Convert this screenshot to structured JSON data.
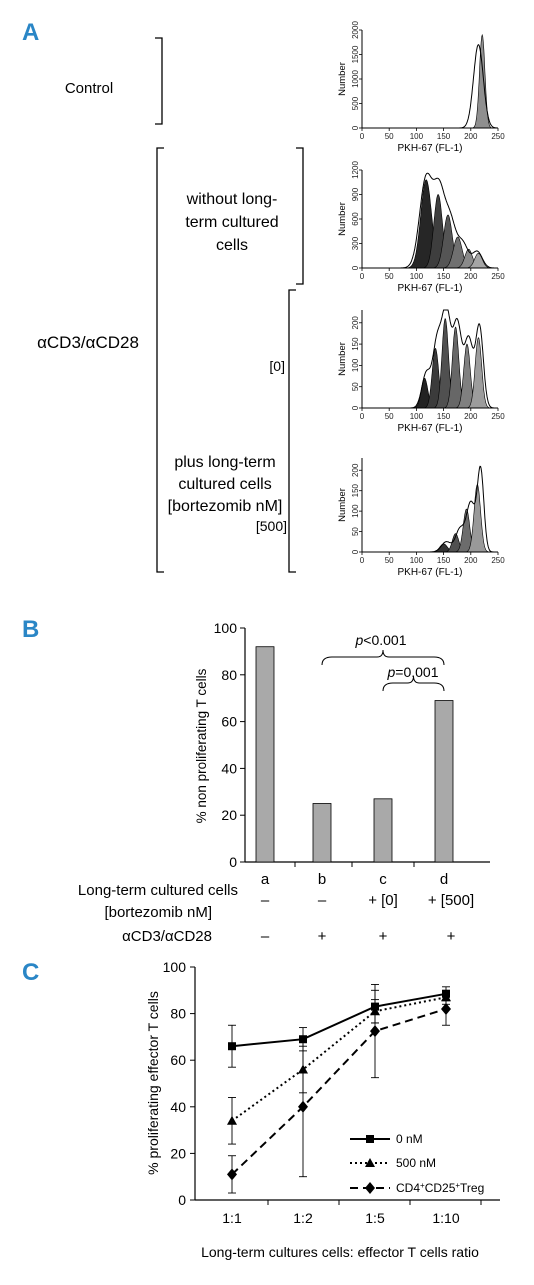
{
  "panels": {
    "A": {
      "letter": "A",
      "group_labels": {
        "control": "Control",
        "stim": "αCD3/αCD28",
        "without": [
          "without long-",
          "term cultured",
          "cells"
        ],
        "plus": [
          "plus long-term",
          "cultured cells",
          "[bortezomib nM]"
        ],
        "dose0": "[0]",
        "dose500": "[500]"
      },
      "histograms": [
        {
          "id": "control",
          "ylabel": "Number",
          "xlabel": "PKH-67 (FL-1)",
          "x_ticks": [
            0,
            50,
            100,
            150,
            200,
            250
          ],
          "y_ticks": [
            0,
            500,
            1000,
            1500,
            2000
          ],
          "xlim": [
            0,
            250
          ],
          "ylim": [
            0,
            2000
          ],
          "peaks": [
            {
              "c": 221,
              "s": 5,
              "h": 1900,
              "fill": "#8f8f8f"
            }
          ],
          "outline": [
            {
              "c": 214,
              "s": 9,
              "h": 1700
            }
          ]
        },
        {
          "id": "without",
          "ylabel": "Number",
          "xlabel": "PKH-67 (FL-1)",
          "x_ticks": [
            0,
            50,
            100,
            150,
            200,
            250
          ],
          "y_ticks": [
            0,
            300,
            600,
            900,
            1200
          ],
          "xlim": [
            0,
            250
          ],
          "ylim": [
            0,
            1200
          ],
          "peaks": [
            {
              "c": 118,
              "s": 10,
              "h": 1080,
              "fill": "#262626"
            },
            {
              "c": 140,
              "s": 8,
              "h": 900,
              "fill": "#3e3e3e"
            },
            {
              "c": 158,
              "s": 8,
              "h": 650,
              "fill": "#555555"
            },
            {
              "c": 176,
              "s": 8,
              "h": 380,
              "fill": "#707070"
            },
            {
              "c": 196,
              "s": 7,
              "h": 230,
              "fill": "#8a8a8a"
            },
            {
              "c": 214,
              "s": 7,
              "h": 180,
              "fill": "#a5a5a5"
            }
          ],
          "outline": [
            {
              "c": 118,
              "s": 12,
              "h": 1100
            },
            {
              "c": 142,
              "s": 10,
              "h": 860
            },
            {
              "c": 162,
              "s": 10,
              "h": 560
            },
            {
              "c": 185,
              "s": 10,
              "h": 300
            },
            {
              "c": 212,
              "s": 9,
              "h": 200
            }
          ]
        },
        {
          "id": "dose0",
          "ylabel": "Number",
          "xlabel": "PKH-67 (FL-1)",
          "x_ticks": [
            0,
            50,
            100,
            150,
            200,
            250
          ],
          "y_ticks": [
            0,
            50,
            100,
            150,
            200
          ],
          "xlim": [
            0,
            250
          ],
          "ylim": [
            0,
            230
          ],
          "peaks": [
            {
              "c": 115,
              "s": 6,
              "h": 70,
              "fill": "#222222"
            },
            {
              "c": 135,
              "s": 6,
              "h": 140,
              "fill": "#3b3b3b"
            },
            {
              "c": 153,
              "s": 6,
              "h": 210,
              "fill": "#505050"
            },
            {
              "c": 172,
              "s": 6,
              "h": 190,
              "fill": "#676767"
            },
            {
              "c": 193,
              "s": 6,
              "h": 150,
              "fill": "#808080"
            },
            {
              "c": 214,
              "s": 6,
              "h": 165,
              "fill": "#9c9c9c"
            }
          ],
          "outline": [
            {
              "c": 118,
              "s": 8,
              "h": 80
            },
            {
              "c": 138,
              "s": 8,
              "h": 150
            },
            {
              "c": 155,
              "s": 8,
              "h": 220
            },
            {
              "c": 175,
              "s": 8,
              "h": 195
            },
            {
              "c": 196,
              "s": 8,
              "h": 160
            },
            {
              "c": 216,
              "s": 7,
              "h": 190
            }
          ]
        },
        {
          "id": "dose500",
          "ylabel": "Number",
          "xlabel": "PKH-67 (FL-1)",
          "x_ticks": [
            0,
            50,
            100,
            150,
            200,
            250
          ],
          "y_ticks": [
            0,
            50,
            100,
            150,
            200
          ],
          "xlim": [
            0,
            250
          ],
          "ylim": [
            0,
            230
          ],
          "peaks": [
            {
              "c": 150,
              "s": 7,
              "h": 20,
              "fill": "#333333"
            },
            {
              "c": 172,
              "s": 6,
              "h": 45,
              "fill": "#505050"
            },
            {
              "c": 192,
              "s": 6,
              "h": 105,
              "fill": "#6c6c6c"
            },
            {
              "c": 212,
              "s": 6,
              "h": 165,
              "fill": "#999999"
            }
          ],
          "outline": [
            {
              "c": 155,
              "s": 9,
              "h": 25
            },
            {
              "c": 180,
              "s": 8,
              "h": 55
            },
            {
              "c": 200,
              "s": 8,
              "h": 120
            },
            {
              "c": 218,
              "s": 6,
              "h": 200
            }
          ]
        }
      ]
    },
    "B": {
      "letter": "B",
      "chart_data": {
        "type": "bar",
        "categories": [
          "a",
          "b",
          "c",
          "d"
        ],
        "values": [
          92,
          25,
          27,
          69
        ],
        "ylabel": "% non proliferating T cells",
        "ylim": [
          0,
          100
        ],
        "y_ticks": [
          0,
          20,
          40,
          60,
          80,
          100
        ],
        "bar_color": "#a9a9a9",
        "annotations": [
          {
            "text": "p<0.001",
            "from": "b",
            "to": "d"
          },
          {
            "text": "p=0.001",
            "from": "c",
            "to": "d"
          }
        ]
      },
      "rows": [
        {
          "label": "Long-term cultured cells",
          "values": [
            "–",
            "–",
            "+ [0]",
            "+ [500]"
          ]
        },
        {
          "label": "[bortezomib nM]",
          "values": []
        },
        {
          "label": "αCD3/αCD28",
          "values": [
            "–",
            "+",
            "+",
            "+"
          ]
        }
      ]
    },
    "C": {
      "letter": "C",
      "chart_data": {
        "type": "line",
        "categories": [
          "1:1",
          "1:2",
          "1:5",
          "1:10"
        ],
        "ylabel": "% proliferating effector T cells",
        "xlabel": "Long-term cultures cells: effector T cells ratio",
        "ylim": [
          0,
          100
        ],
        "y_ticks": [
          0,
          20,
          40,
          60,
          80,
          100
        ],
        "legend_position": "bottom-right",
        "series": [
          {
            "name": "0 nM",
            "values": [
              66,
              69,
              83,
              88.5
            ],
            "err": [
              9,
              5,
              7,
              3
            ],
            "marker": "square",
            "dash": "solid"
          },
          {
            "name": "500 nM",
            "values": [
              34,
              56,
              81,
              87
            ],
            "err": [
              10,
              10,
              5,
              3
            ],
            "marker": "triangle",
            "dash": "dotted"
          },
          {
            "name": "CD4+CD25+Treg",
            "values": [
              11,
              40,
              72.5,
              82
            ],
            "err": [
              8,
              30,
              20,
              7
            ],
            "marker": "diamond",
            "dash": "dashed"
          }
        ]
      }
    }
  }
}
